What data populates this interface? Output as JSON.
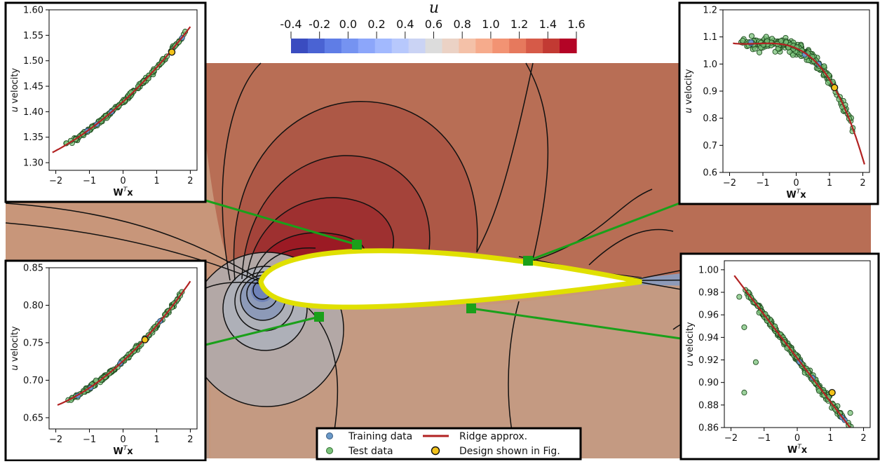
{
  "colorbar": {
    "title": "u",
    "ticks": [
      "-0.4",
      "-0.2",
      "0.0",
      "0.2",
      "0.4",
      "0.6",
      "0.8",
      "1.0",
      "1.2",
      "1.4",
      "1.6"
    ],
    "range": [
      -0.4,
      1.6
    ],
    "colors": [
      "#3a4cc0",
      "#4a63d3",
      "#5f7de6",
      "#7593f1",
      "#8ca6fa",
      "#a2b9fe",
      "#b7c8fc",
      "#cad3f4",
      "#dcdcdc",
      "#ebd2c5",
      "#f4c1a8",
      "#f6ab8c",
      "#f29373",
      "#e6795d",
      "#d65a48",
      "#c23a33",
      "#b40426"
    ]
  },
  "flow_colors": {
    "background": "#c8967a",
    "upper_field": "#b86e55",
    "suction_peak": "#9b1a24",
    "stagnation": "#aeb0b8",
    "airfoil_outline": "#e0e000",
    "probe": "#1aa01a"
  },
  "legend": {
    "training": "Training data",
    "test": "Test data",
    "ridge": "Ridge approx.",
    "design": "Design shown in Fig."
  },
  "chart_data": [
    {
      "id": "upper-left",
      "type": "scatter",
      "xlabel_main": "W",
      "xlabel_sup": "T",
      "xlabel_tail": "x",
      "ylabel_italic": "u",
      "ylabel_rest": " velocity",
      "xlim": [
        -2.2,
        2.2
      ],
      "ylim": [
        1.285,
        1.6
      ],
      "xticks": [
        -2,
        -1,
        0,
        1,
        2
      ],
      "xtick_labels": [
        "−2",
        "−1",
        "0",
        "1",
        "2"
      ],
      "yticks": [
        1.3,
        1.35,
        1.4,
        1.45,
        1.5,
        1.55,
        1.6
      ],
      "ytick_labels": [
        "1.30",
        "1.35",
        "1.40",
        "1.45",
        "1.50",
        "1.55",
        "1.60"
      ],
      "ridge": {
        "a": 1.4196,
        "b": 0.0608,
        "c": 0.00638,
        "d": 0.0,
        "x0": -2.1,
        "x1": 2.0
      },
      "scatter": {
        "xmin": -2.0,
        "xmax": 2.0,
        "n": 160,
        "noise": 0.0035,
        "outliers": []
      },
      "design_point": {
        "x": 1.45,
        "y": 1.517
      }
    },
    {
      "id": "upper-right",
      "type": "scatter",
      "xlabel_main": "W",
      "xlabel_sup": "T",
      "xlabel_tail": "x",
      "ylabel_italic": "u",
      "ylabel_rest": " velocity",
      "xlim": [
        -2.2,
        2.2
      ],
      "ylim": [
        0.6,
        1.2
      ],
      "xticks": [
        -2,
        -1,
        0,
        1,
        2
      ],
      "xtick_labels": [
        "−2",
        "−1",
        "0",
        "1",
        "2"
      ],
      "yticks": [
        0.6,
        0.7,
        0.8,
        0.9,
        1.0,
        1.1,
        1.2
      ],
      "ytick_labels": [
        "0.6",
        "0.7",
        "0.8",
        "0.9",
        "1.0",
        "1.1",
        "1.2"
      ],
      "ridge": {
        "a": 1.058,
        "b": -0.053,
        "c": -0.0484,
        "d": -0.0135,
        "x0": -1.9,
        "x1": 2.05
      },
      "scatter": {
        "xmin": -1.75,
        "xmax": 1.85,
        "n": 260,
        "noise": 0.018,
        "outliers": []
      },
      "design_point": {
        "x": 1.15,
        "y": 0.913
      }
    },
    {
      "id": "lower-left",
      "type": "scatter",
      "xlabel_main": "W",
      "xlabel_sup": "T",
      "xlabel_tail": "x",
      "ylabel_italic": "u",
      "ylabel_rest": " velocity",
      "xlim": [
        -2.2,
        2.2
      ],
      "ylim": [
        0.635,
        0.85
      ],
      "xticks": [
        -2,
        -1,
        0,
        1,
        2
      ],
      "xtick_labels": [
        "−2",
        "−1",
        "0",
        "1",
        "2"
      ],
      "yticks": [
        0.65,
        0.7,
        0.75,
        0.8,
        0.85
      ],
      "ytick_labels": [
        "0.65",
        "0.70",
        "0.75",
        "0.80",
        "0.85"
      ],
      "ridge": {
        "a": 0.7255,
        "b": 0.0415,
        "c": 0.00586,
        "d": 0.0,
        "x0": -1.95,
        "x1": 2.0
      },
      "scatter": {
        "xmin": -1.8,
        "xmax": 1.85,
        "n": 150,
        "noise": 0.0025,
        "outliers": []
      },
      "design_point": {
        "x": 0.65,
        "y": 0.754
      }
    },
    {
      "id": "lower-right",
      "type": "scatter",
      "xlabel_main": "W",
      "xlabel_sup": "T",
      "xlabel_tail": "x",
      "ylabel_italic": "u",
      "ylabel_rest": " velocity",
      "xlim": [
        -2.2,
        2.2
      ],
      "ylim": [
        0.86,
        1.008
      ],
      "xticks": [
        -2,
        -1,
        0,
        1,
        2
      ],
      "xtick_labels": [
        "−2",
        "−1",
        "0",
        "1",
        "2"
      ],
      "yticks": [
        0.86,
        0.88,
        0.9,
        0.92,
        0.94,
        0.96,
        0.98,
        1.0
      ],
      "ytick_labels": [
        "0.86",
        "0.88",
        "0.90",
        "0.92",
        "0.94",
        "0.96",
        "0.98",
        "1.00"
      ],
      "ridge": {
        "a": 0.9215,
        "b": -0.0386,
        "c": 0.0,
        "d": 0.0,
        "x0": -1.9,
        "x1": 1.9
      },
      "scatter": {
        "xmin": -1.75,
        "xmax": 1.75,
        "n": 240,
        "noise": 0.0025,
        "outliers": [
          [
            -1.75,
            0.976
          ],
          [
            -1.6,
            0.949
          ],
          [
            -1.25,
            0.918
          ],
          [
            -1.6,
            0.891
          ],
          [
            -1.15,
            0.962
          ],
          [
            1.6,
            0.873
          ]
        ]
      },
      "design_point": {
        "x": 1.05,
        "y": 0.891
      }
    }
  ]
}
